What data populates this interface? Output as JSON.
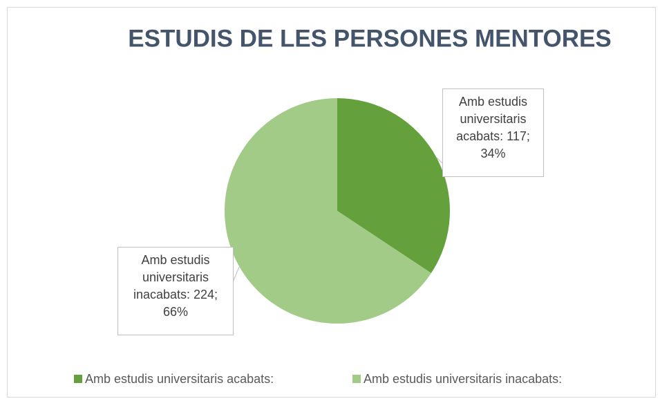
{
  "chart_data": {
    "type": "pie",
    "title": "ESTUDIS DE LES PERSONES MENTORES",
    "categories": [
      "Amb estudis universitaris acabats:",
      "Amb estudis universitaris inacabats:"
    ],
    "values": [
      117,
      224
    ],
    "value_labels": [
      "Amb estudis universitaris acabats: 117; 34%",
      "Amb estudis universitaris inacabats: 224; 66%"
    ],
    "colors": [
      "#64a13d",
      "#a3cb88"
    ],
    "legend": "bottom"
  }
}
